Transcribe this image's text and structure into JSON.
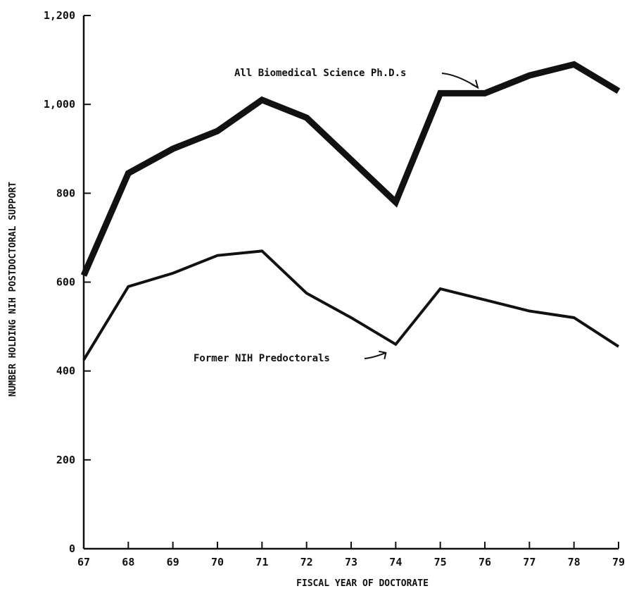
{
  "chart_data": {
    "type": "line",
    "title": "",
    "xlabel": "FISCAL YEAR OF DOCTORATE",
    "ylabel": "NUMBER HOLDING NIH POSTDOCTORAL SUPPORT",
    "x": [
      67,
      68,
      69,
      70,
      71,
      72,
      73,
      74,
      75,
      76,
      77,
      78,
      79
    ],
    "xlim": [
      67,
      79
    ],
    "ylim": [
      0,
      1200
    ],
    "y_ticks": [
      0,
      200,
      400,
      600,
      800,
      1000,
      1200
    ],
    "y_tick_labels": [
      "0",
      "200",
      "400",
      "600",
      "800",
      "1,000",
      "1,200"
    ],
    "x_tick_labels": [
      "67",
      "68",
      "69",
      "70",
      "71",
      "72",
      "73",
      "74",
      "75",
      "76",
      "77",
      "78",
      "79"
    ],
    "grid": false,
    "series": [
      {
        "name": "All Biomedical Science Ph.D.s",
        "values": [
          615,
          845,
          900,
          940,
          1010,
          970,
          875,
          780,
          1025,
          1025,
          1065,
          1090,
          1030
        ],
        "stroke_style": "thick"
      },
      {
        "name": "Former NIH Predoctorals",
        "values": [
          425,
          590,
          620,
          660,
          670,
          575,
          520,
          460,
          585,
          560,
          535,
          520,
          455
        ],
        "stroke_style": "thin"
      }
    ],
    "annotations": [
      {
        "text": "All Biomedical Science Ph.D.s",
        "points_to_series": 0,
        "x": 76
      },
      {
        "text": "Former NIH Predoctorals",
        "points_to_series": 1,
        "x": 74
      }
    ]
  }
}
